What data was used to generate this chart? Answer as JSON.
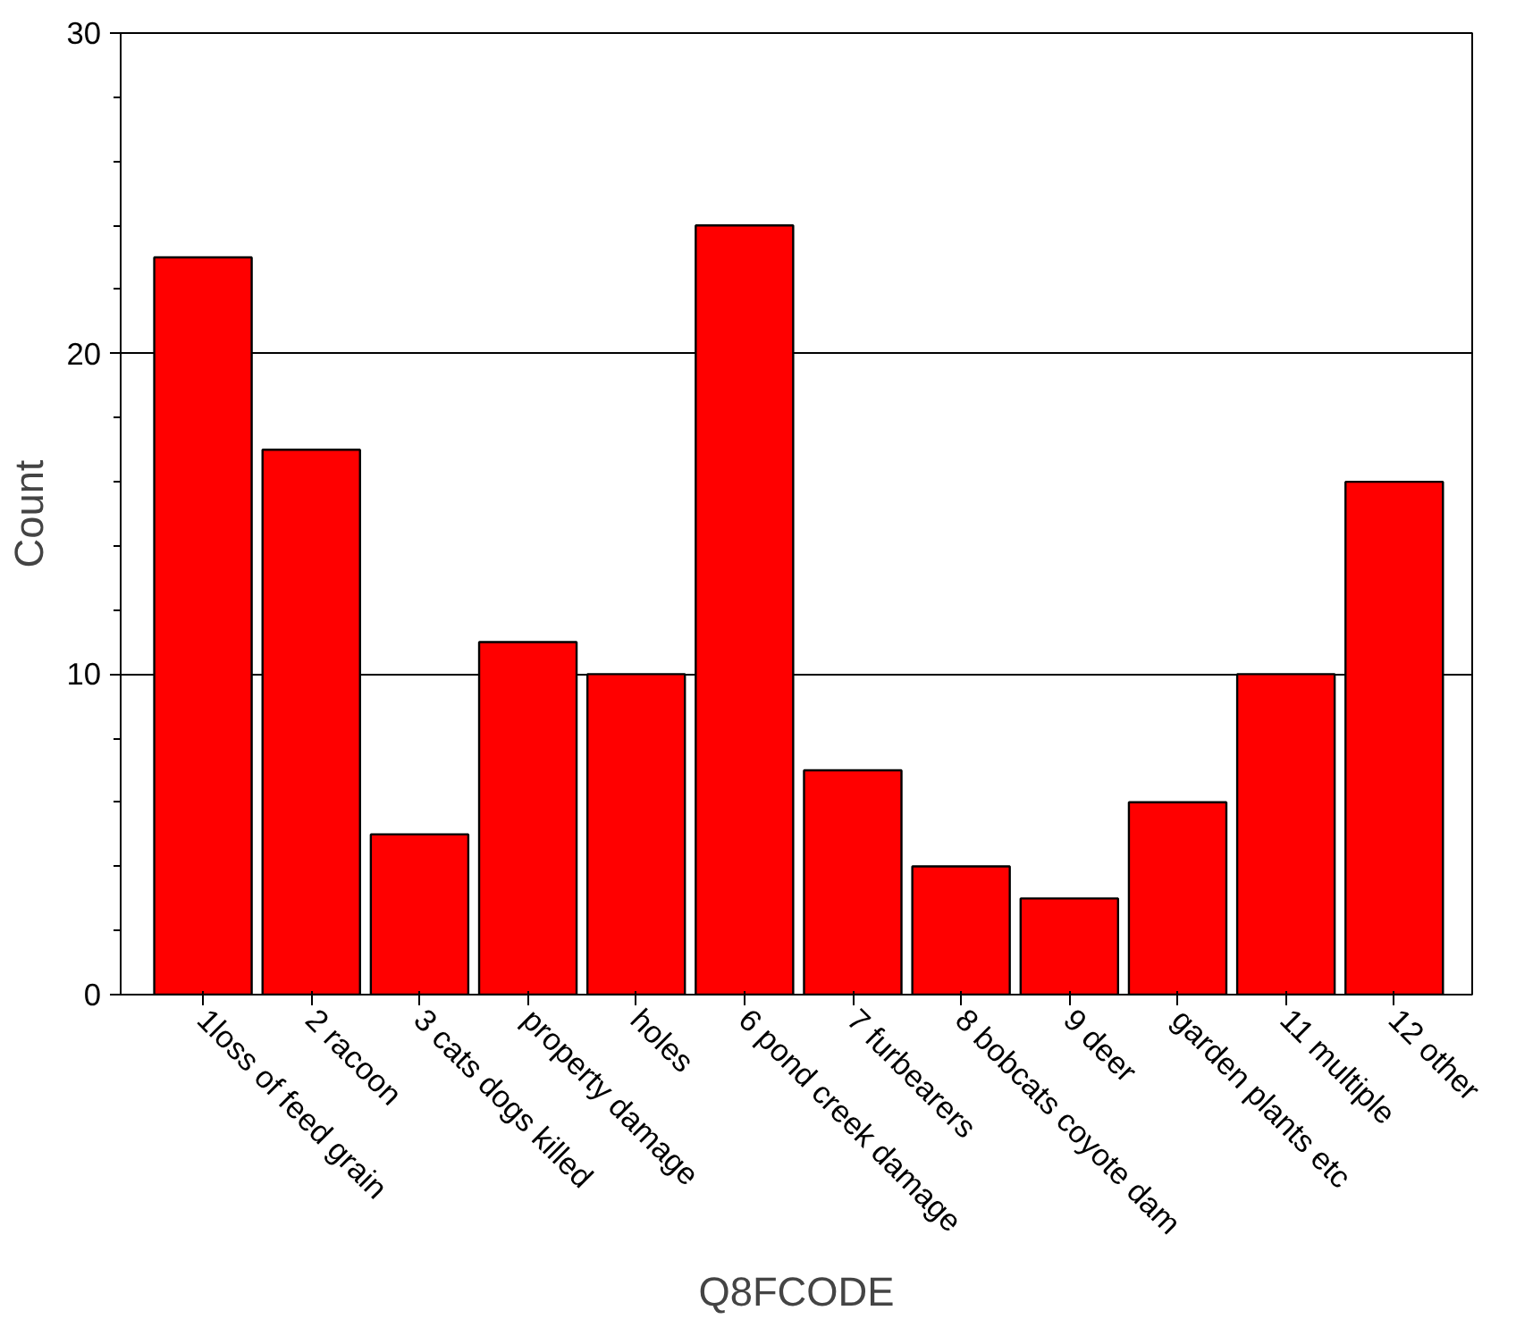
{
  "chart_data": {
    "type": "bar",
    "xlabel": "Q8FCODE",
    "ylabel": "Count",
    "categories": [
      "1loss of feed grain",
      "2 racoon",
      "3 cats dogs killed",
      "property damage",
      "holes",
      "6 pond creek damage",
      "7 furbearers",
      "8 bobcats coyote dam",
      "9 deer",
      "garden plants etc",
      "11 multiple",
      "12 other"
    ],
    "values": [
      23,
      17,
      5,
      11,
      10,
      24,
      7,
      4,
      3,
      6,
      10,
      16
    ],
    "color": "#ff0000",
    "ylim": [
      0,
      30
    ],
    "yticks": [
      0,
      10,
      20,
      30
    ],
    "grid": "y"
  }
}
